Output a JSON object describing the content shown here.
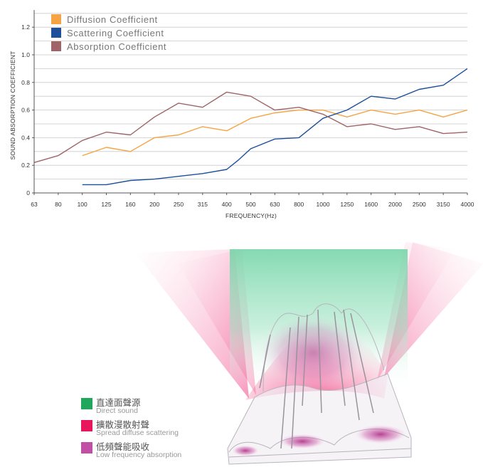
{
  "chart_data": {
    "type": "line",
    "ylabel": "SOUND ABSORPTION COEFFICIENT",
    "xlabel": "FREQUENCY(Hz)",
    "x": [
      "63",
      "80",
      "100",
      "125",
      "160",
      "200",
      "250",
      "315",
      "400",
      "500",
      "630",
      "800",
      "1000",
      "1250",
      "1600",
      "2000",
      "2500",
      "3150",
      "4000"
    ],
    "yticks": [
      "0",
      "0.2",
      "0.4",
      "0.6",
      "0.8",
      "1.0",
      "1.2"
    ],
    "ylim": [
      0,
      1.3
    ],
    "grid": true,
    "legend_position": "top-left",
    "series": [
      {
        "name": "Diffusion Coefficient",
        "color": "#f5a445",
        "points": [
          [
            2,
            0.27
          ],
          [
            3,
            0.33
          ],
          [
            4,
            0.3
          ],
          [
            5,
            0.4
          ],
          [
            6,
            0.42
          ],
          [
            7,
            0.48
          ],
          [
            8,
            0.45
          ],
          [
            9,
            0.54
          ],
          [
            10,
            0.58
          ],
          [
            11,
            0.6
          ],
          [
            12,
            0.6
          ],
          [
            13,
            0.55
          ],
          [
            14,
            0.6
          ],
          [
            15,
            0.57
          ],
          [
            16,
            0.6
          ],
          [
            17,
            0.55
          ],
          [
            18,
            0.6
          ]
        ]
      },
      {
        "name": "Scattering Coefficient",
        "color": "#1d4f9a",
        "points": [
          [
            2,
            0.06
          ],
          [
            3,
            0.06
          ],
          [
            4,
            0.09
          ],
          [
            5,
            0.1
          ],
          [
            6,
            0.12
          ],
          [
            7,
            0.14
          ],
          [
            8,
            0.17
          ],
          [
            8.5,
            0.24
          ],
          [
            9,
            0.32
          ],
          [
            10,
            0.39
          ],
          [
            11,
            0.4
          ],
          [
            12,
            0.54
          ],
          [
            13,
            0.6
          ],
          [
            14,
            0.7
          ],
          [
            15,
            0.68
          ],
          [
            16,
            0.75
          ],
          [
            17,
            0.78
          ],
          [
            18,
            0.9
          ]
        ]
      },
      {
        "name": "Absorption Coefficient",
        "color": "#9e6467",
        "points": [
          [
            0,
            0.22
          ],
          [
            1,
            0.27
          ],
          [
            2,
            0.38
          ],
          [
            3,
            0.44
          ],
          [
            4,
            0.42
          ],
          [
            5,
            0.55
          ],
          [
            6,
            0.65
          ],
          [
            7,
            0.62
          ],
          [
            8,
            0.73
          ],
          [
            9,
            0.7
          ],
          [
            10,
            0.6
          ],
          [
            11,
            0.62
          ],
          [
            12,
            0.57
          ],
          [
            13,
            0.48
          ],
          [
            14,
            0.5
          ],
          [
            15,
            0.46
          ],
          [
            16,
            0.48
          ],
          [
            17,
            0.43
          ],
          [
            18,
            0.44
          ]
        ]
      }
    ]
  },
  "illustration_legend": [
    {
      "zh": "直達面聲源",
      "en": "Direct sound",
      "color": "#1fa85c"
    },
    {
      "zh": "擴散漫散射聲",
      "en": "Spread diffuse scattering",
      "color": "#e8175d"
    },
    {
      "zh": "低頻聲能吸收",
      "en": "Low frequency absorption",
      "color": "#c14fa6"
    }
  ]
}
